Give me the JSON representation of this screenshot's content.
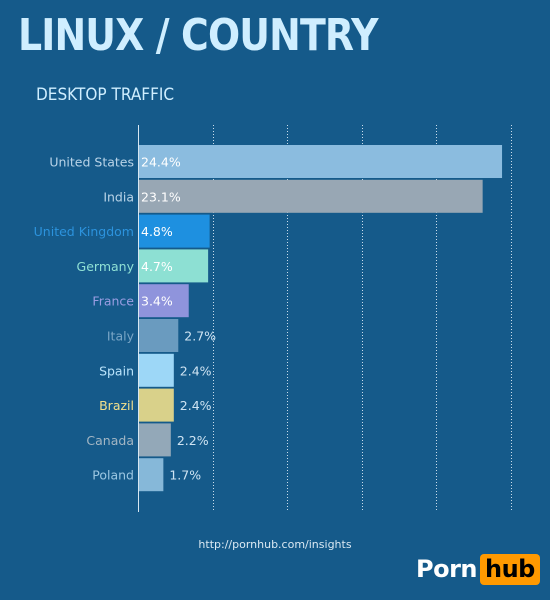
{
  "header": {
    "title": "LINUX / COUNTRY",
    "subtitle": "DESKTOP TRAFFIC"
  },
  "footer": {
    "source": "http://pornhub.com/insights",
    "logo_part1": "Porn",
    "logo_part2": "hub"
  },
  "colors": {
    "background": "#155a8a",
    "gridline": "#c9dcea",
    "axis": "#d6e6f1",
    "logo_accent": "#ff9900"
  },
  "chart_data": {
    "type": "bar",
    "orientation": "horizontal",
    "title": "LINUX / COUNTRY",
    "subtitle": "DESKTOP TRAFFIC",
    "xlim": [
      0,
      25
    ],
    "grid": true,
    "grid_style": "dotted",
    "legend": "none",
    "value_suffix": "%",
    "categories": [
      "United States",
      "India",
      "United Kingdom",
      "Germany",
      "France",
      "Italy",
      "Spain",
      "Brazil",
      "Canada",
      "Poland"
    ],
    "values": [
      24.4,
      23.1,
      4.8,
      4.7,
      3.4,
      2.7,
      2.4,
      2.4,
      2.2,
      1.7
    ],
    "value_labels": [
      "24.4%",
      "23.1%",
      "4.8%",
      "4.7%",
      "3.4%",
      "2.7%",
      "2.4%",
      "2.4%",
      "2.2%",
      "1.7%"
    ],
    "bar_colors": [
      "#8bbcdf",
      "#98a7b4",
      "#1e90e0",
      "#8de0d3",
      "#8f94dc",
      "#6a9bbf",
      "#9dd7f7",
      "#d9d18a",
      "#93a8b8",
      "#86b8d9"
    ],
    "label_colors": [
      "#b9d4e8",
      "#b9d4e8",
      "#2c93dd",
      "#8fe0d4",
      "#9a9de2",
      "#7aa6c6",
      "#b9e3fb",
      "#f2e08c",
      "#a3b6c4",
      "#9cc7e2"
    ]
  }
}
